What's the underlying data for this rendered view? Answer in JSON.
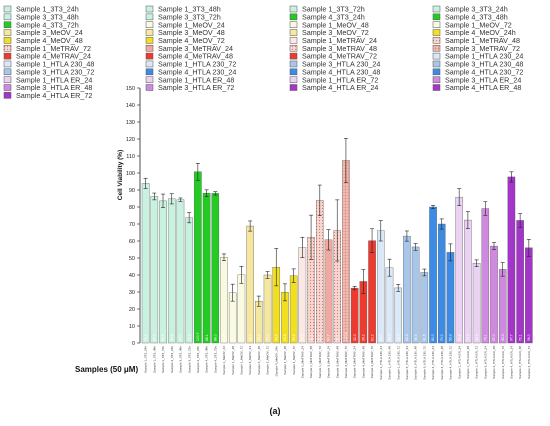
{
  "chart_data": {
    "type": "bar",
    "ylabel": "Cell Viability (%)",
    "xlabel": "Samples (50 μM)",
    "ylim": [
      0,
      150
    ],
    "yticks": [
      0,
      10,
      20,
      30,
      40,
      50,
      60,
      70,
      80,
      90,
      100,
      110,
      120,
      130,
      140,
      150
    ],
    "grid": false,
    "legend_position": "top",
    "caption": "(a)",
    "series": [
      {
        "name": "Sample 1_3T3_24h",
        "color": "#c9f1e0",
        "pattern": "solid",
        "value": 93.9,
        "err": 3
      },
      {
        "name": "Sample 1_3T3_48h",
        "color": "#c9f1e0",
        "pattern": "solid",
        "value": 86.2,
        "err": 2
      },
      {
        "name": "Sample 1_3T3_72h",
        "color": "#c9f1e0",
        "pattern": "solid",
        "value": 83.6,
        "err": 4
      },
      {
        "name": "Sample 3_3T3_24h",
        "color": "#c9f1e0",
        "pattern": "solid",
        "value": 84.8,
        "err": 3
      },
      {
        "name": "Sample 3_3T3_48h",
        "color": "#c9f1e0",
        "pattern": "solid",
        "value": 84.3,
        "err": 1
      },
      {
        "name": "Sample 3_3T3_72h",
        "color": "#c9f1e0",
        "pattern": "solid",
        "value": 73.7,
        "err": 3
      },
      {
        "name": "Sample 4_3T3_24h",
        "color": "#22cc22",
        "pattern": "solid",
        "value": 100.7,
        "err": 5
      },
      {
        "name": "Sample 4_3T3_48h",
        "color": "#22cc22",
        "pattern": "solid",
        "value": 88.1,
        "err": 2
      },
      {
        "name": "Sample 4_3T3_72h",
        "color": "#22cc22",
        "pattern": "solid",
        "value": 88.0,
        "err": 1
      },
      {
        "name": "Sample 1_MeOV_24",
        "color": "#fafae0",
        "pattern": "solid",
        "value": 50.4,
        "err": 2
      },
      {
        "name": "Sample 1_MeOV_48",
        "color": "#fafae0",
        "pattern": "solid",
        "value": 29.6,
        "err": 5
      },
      {
        "name": "Sample 1_MeOV_72",
        "color": "#fafae0",
        "pattern": "solid",
        "value": 40.1,
        "err": 5
      },
      {
        "name": "Sample 3_MeOV_24",
        "color": "#f5e6a0",
        "pattern": "solid",
        "value": 68.8,
        "err": 3
      },
      {
        "name": "Sample 3_MeOV_48",
        "color": "#f5e6a0",
        "pattern": "solid",
        "value": 24.6,
        "err": 3
      },
      {
        "name": "Sample 3_MeOV_72",
        "color": "#f5e6a0",
        "pattern": "solid",
        "value": 40.0,
        "err": 2
      },
      {
        "name": "Sample 4_MeOV_24h",
        "color": "#f2e020",
        "pattern": "solid",
        "value": 44.6,
        "err": 11
      },
      {
        "name": "Sample 4_MeOV_48",
        "color": "#f2e020",
        "pattern": "solid",
        "value": 29.8,
        "err": 5
      },
      {
        "name": "Sample 4_MeOV_72",
        "color": "#f2e020",
        "pattern": "solid",
        "value": 39.6,
        "err": 4
      },
      {
        "name": "Sample 1_MeTRAV_24",
        "color": "#fbe8e4",
        "pattern": "solid",
        "value": 56.2,
        "err": 6
      },
      {
        "name": "Sample 1_MeTRAV_48",
        "color": "#f4c4bc",
        "pattern": "dots",
        "value": 62.2,
        "err": 13
      },
      {
        "name": "Sample 1_MeTRAV_72",
        "color": "#f4c4bc",
        "pattern": "dots",
        "value": 83.9,
        "err": 9
      },
      {
        "name": "Sample 3_MeTRAV_24",
        "color": "#f0a8a0",
        "pattern": "solid",
        "value": 60.7,
        "err": 6
      },
      {
        "name": "Sample 3_MeTRAV_48",
        "color": "#f4c4bc",
        "pattern": "dots",
        "value": 66.2,
        "err": 18
      },
      {
        "name": "Sample 3_MeTRAV_72",
        "color": "#eda59e",
        "pattern": "grid",
        "value": 107.4,
        "err": 13
      },
      {
        "name": "Sample 4_MeTRAV_24",
        "color": "#ee3b2f",
        "pattern": "solid",
        "value": 32.3,
        "err": 1
      },
      {
        "name": "Sample 4_MeTRAV_48",
        "color": "#ee3b2f",
        "pattern": "solid",
        "value": 36.2,
        "err": 7
      },
      {
        "name": "Sample 4_MeTRAV_72",
        "color": "#ee3b2f",
        "pattern": "solid",
        "value": 60.2,
        "err": 7
      },
      {
        "name": "Sample 1_HTLA 230_24",
        "color": "#dbe8f7",
        "pattern": "solid",
        "value": 66.0,
        "err": 6
      },
      {
        "name": "Sample 1_HTLA 230_48",
        "color": "#dbe8f7",
        "pattern": "solid",
        "value": 44.3,
        "err": 5
      },
      {
        "name": "Sample 1_HTLA 230_72",
        "color": "#dbe8f7",
        "pattern": "solid",
        "value": 32.4,
        "err": 2
      },
      {
        "name": "Sample 3_HTLA 230_24",
        "color": "#a7c6ea",
        "pattern": "solid",
        "value": 62.9,
        "err": 3
      },
      {
        "name": "Sample 3_HTLA 230_48",
        "color": "#a7c6ea",
        "pattern": "solid",
        "value": 56.5,
        "err": 2
      },
      {
        "name": "Sample 3_HTLA 230_72",
        "color": "#a7c6ea",
        "pattern": "solid",
        "value": 41.5,
        "err": 2
      },
      {
        "name": "Sample 4_HTLA 230_24",
        "color": "#3c8ce6",
        "pattern": "solid",
        "value": 80.0,
        "err": 1
      },
      {
        "name": "Sample 4_HTLA 230_48",
        "color": "#3c8ce6",
        "pattern": "solid",
        "value": 70.0,
        "err": 3
      },
      {
        "name": "Sample 4_HTLA 230_72",
        "color": "#3c8ce6",
        "pattern": "solid",
        "value": 53.3,
        "err": 5
      },
      {
        "name": "Sample 1_HTLA ER_24",
        "color": "#ead2f2",
        "pattern": "solid",
        "value": 85.8,
        "err": 5
      },
      {
        "name": "Sample 1_HTLA ER_48",
        "color": "#ead2f2",
        "pattern": "solid",
        "value": 72.3,
        "err": 5
      },
      {
        "name": "Sample 1_HTLA ER_72",
        "color": "#ead2f2",
        "pattern": "solid",
        "value": 46.9,
        "err": 2
      },
      {
        "name": "Sample 3_HTLA ER_24",
        "color": "#cf8ae0",
        "pattern": "solid",
        "value": 79.1,
        "err": 4
      },
      {
        "name": "Sample 3_HTLA ER_48",
        "color": "#cf8ae0",
        "pattern": "solid",
        "value": 57.0,
        "err": 2
      },
      {
        "name": "Sample 3_HTLA ER_72",
        "color": "#cf8ae0",
        "pattern": "solid",
        "value": 43.3,
        "err": 4
      },
      {
        "name": "Sample 4_HTLA ER_24",
        "color": "#a335c9",
        "pattern": "solid",
        "value": 97.7,
        "err": 3
      },
      {
        "name": "Sample 4_HTLA ER_48",
        "color": "#a335c9",
        "pattern": "solid",
        "value": 72.1,
        "err": 4
      },
      {
        "name": "Sample 4_HTLA ER_72",
        "color": "#a335c9",
        "pattern": "solid",
        "value": 56.0,
        "err": 5
      }
    ]
  }
}
